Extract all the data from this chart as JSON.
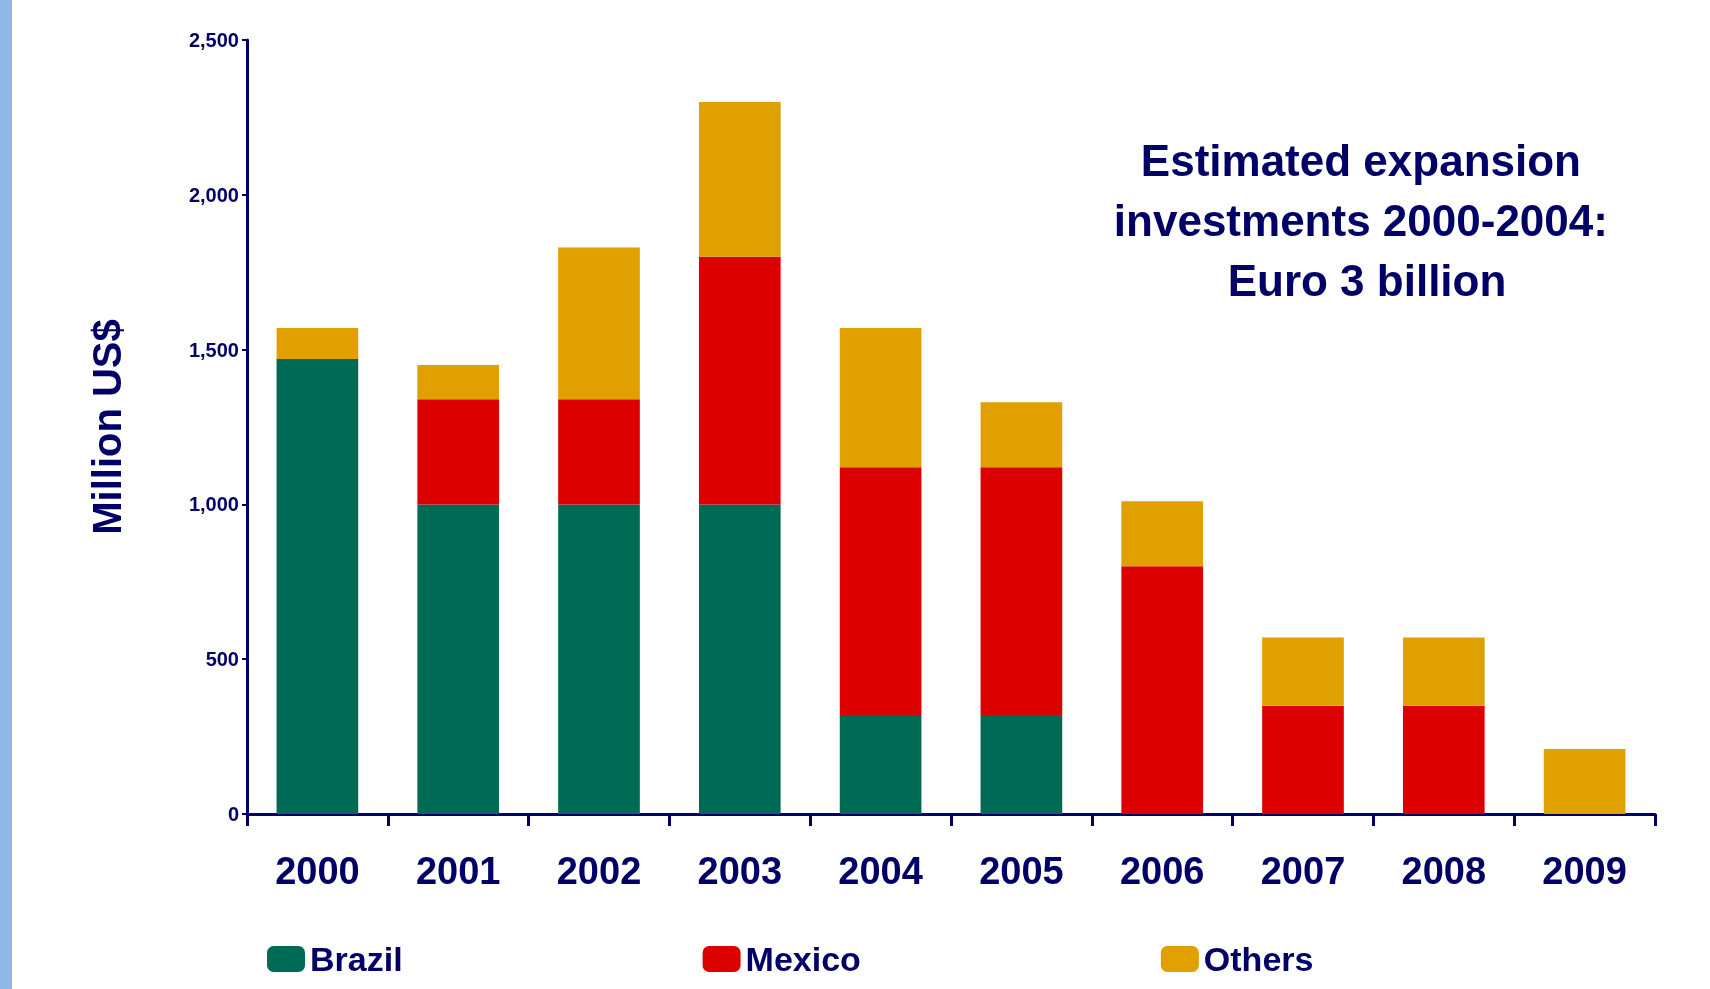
{
  "chart_data": {
    "type": "bar",
    "stacked": true,
    "title": "Estimated expansion investments 2000-2004: Euro 3 billion",
    "ylabel": "Million US$",
    "categories": [
      "2000",
      "2001",
      "2002",
      "2003",
      "2004",
      "2005",
      "2006",
      "2007",
      "2008",
      "2009"
    ],
    "series": [
      {
        "name": "Brazil",
        "color": "#006b54",
        "values": [
          1470,
          1000,
          1000,
          1000,
          320,
          320,
          0,
          0,
          0,
          0
        ]
      },
      {
        "name": "Mexico",
        "color": "#dd0000",
        "values": [
          0,
          340,
          340,
          800,
          800,
          800,
          800,
          350,
          350,
          0
        ]
      },
      {
        "name": "Others",
        "color": "#e0a000",
        "values": [
          100,
          110,
          490,
          500,
          450,
          210,
          210,
          220,
          220,
          210
        ]
      }
    ],
    "ylim": [
      0,
      2500
    ],
    "yticks": [
      0,
      500,
      {
        "value": 1000,
        "label": "1,000"
      },
      {
        "value": 1500,
        "label": "1,500"
      },
      {
        "value": 2000,
        "label": "2,000"
      },
      {
        "value": 2500,
        "label": "2,500"
      }
    ],
    "grid": false,
    "legend": "bottom"
  }
}
